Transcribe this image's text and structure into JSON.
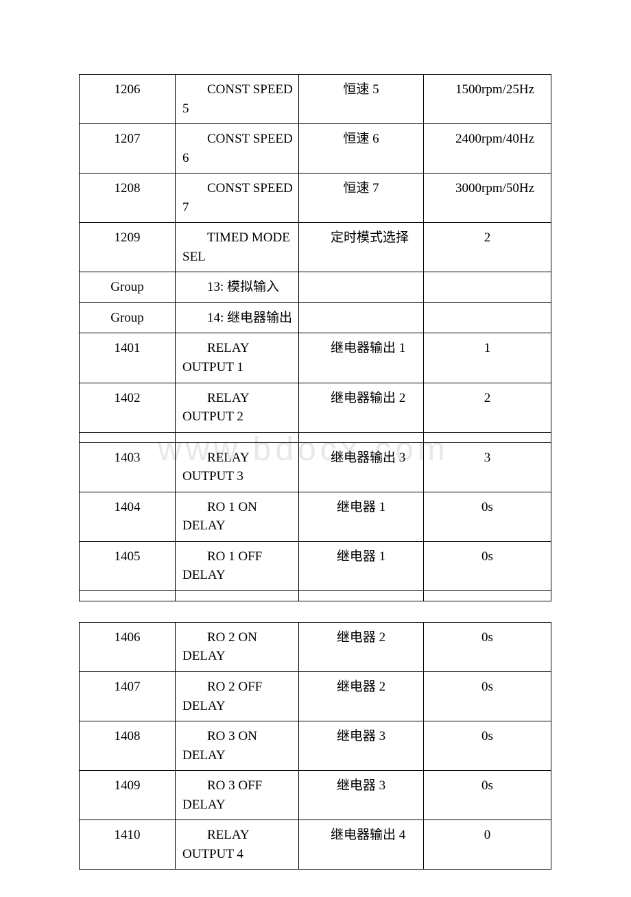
{
  "watermark": "www.bdocx.com",
  "table1": {
    "rows": [
      {
        "c1": "1206",
        "c2": "CONST SPEED 5",
        "c3": "恒速 5",
        "c4": "1500rpm/25Hz",
        "c3center": true
      },
      {
        "c1": "1207",
        "c2": "CONST SPEED 6",
        "c3": "恒速 6",
        "c4": "2400rpm/40Hz",
        "c3center": true
      },
      {
        "c1": "1208",
        "c2": "CONST SPEED 7",
        "c3": "恒速 7",
        "c4": "3000rpm/50Hz",
        "c3center": true
      },
      {
        "c1": "1209",
        "c2": "TIMED MODE SEL",
        "c3": "定时模式选择",
        "c4": "2",
        "c4center": true
      },
      {
        "c1": "Group",
        "c2": "13: 模拟输入",
        "c3": "",
        "c4": ""
      },
      {
        "c1": "Group",
        "c2": "14: 继电器输出",
        "c3": "",
        "c4": ""
      },
      {
        "c1": "1401",
        "c2": "RELAY OUTPUT 1",
        "c3": "继电器输出 1",
        "c4": "1",
        "c4center": true
      },
      {
        "c1": "1402",
        "c2": "RELAY OUTPUT 2",
        "c3": "继电器输出 2",
        "c4": "2",
        "c4center": true
      },
      {
        "short": true
      },
      {
        "c1": "1403",
        "c2": "RELAY OUTPUT 3",
        "c3": "继电器输出 3",
        "c4": "3",
        "c4center": true
      },
      {
        "c1": "1404",
        "c2": "RO 1 ON DELAY",
        "c3": "继电器 1",
        "c4": "0s",
        "c3center": true,
        "c4center": true
      },
      {
        "c1": "1405",
        "c2": "RO 1 OFF DELAY",
        "c3": "继电器 1",
        "c4": "0s",
        "c3center": true,
        "c4center": true
      },
      {
        "short": true
      }
    ]
  },
  "table2": {
    "rows": [
      {
        "c1": "1406",
        "c2": "RO 2 ON DELAY",
        "c3": "继电器 2",
        "c4": "0s",
        "c3center": true,
        "c4center": true
      },
      {
        "c1": "1407",
        "c2": "RO 2 OFF DELAY",
        "c3": "继电器 2",
        "c4": "0s",
        "c3center": true,
        "c4center": true
      },
      {
        "c1": "1408",
        "c2": "RO 3 ON DELAY",
        "c3": "继电器 3",
        "c4": "0s",
        "c3center": true,
        "c4center": true
      },
      {
        "c1": "1409",
        "c2": "RO 3 OFF DELAY",
        "c3": "继电器 3",
        "c4": "0s",
        "c3center": true,
        "c4center": true
      },
      {
        "c1": "1410",
        "c2": "RELAY OUTPUT 4",
        "c3": "继电器输出 4",
        "c4": "0",
        "c4center": true
      }
    ]
  }
}
